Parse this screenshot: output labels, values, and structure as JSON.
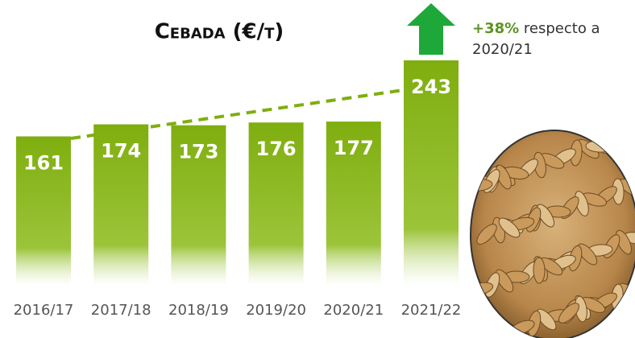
{
  "chart_data": {
    "type": "bar",
    "title": "Cebada (€/t)",
    "categories": [
      "2016/17",
      "2017/18",
      "2018/19",
      "2019/20",
      "2020/21",
      "2021/22"
    ],
    "values": [
      161,
      174,
      173,
      176,
      177,
      243
    ],
    "color": "#7fae0f",
    "annotation": {
      "value": "+38%",
      "lines": [
        "respecto a",
        "2020/21"
      ]
    }
  }
}
